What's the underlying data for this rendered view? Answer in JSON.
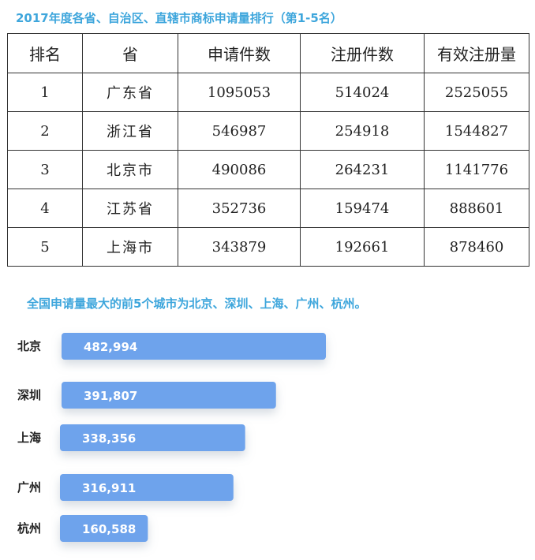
{
  "table_section": {
    "title": "2017年度各省、自治区、直辖市商标申请量排行（第1-5名）",
    "headers": [
      "排名",
      "省",
      "申请件数",
      "注册件数",
      "有效注册量"
    ],
    "rows": [
      {
        "rank": "1",
        "province": "广东省",
        "applications": "1095053",
        "registrations": "514024",
        "valid": "2525055"
      },
      {
        "rank": "2",
        "province": "浙江省",
        "applications": "546987",
        "registrations": "254918",
        "valid": "1544827"
      },
      {
        "rank": "3",
        "province": "北京市",
        "applications": "490086",
        "registrations": "264231",
        "valid": "1141776"
      },
      {
        "rank": "4",
        "province": "江苏省",
        "applications": "352736",
        "registrations": "159474",
        "valid": "888601"
      },
      {
        "rank": "5",
        "province": "上海市",
        "applications": "343879",
        "registrations": "192661",
        "valid": "878460"
      }
    ]
  },
  "chart_section": {
    "title": "全国申请量最大的前5个城市为北京、深圳、上海、广州、杭州。"
  },
  "chart_data": {
    "type": "bar",
    "orientation": "horizontal",
    "categories": [
      "北京",
      "深圳",
      "上海",
      "广州",
      "杭州"
    ],
    "values": [
      482994,
      391807,
      338356,
      316911,
      160588
    ],
    "value_labels": [
      "482,994",
      "391,807",
      "338,356",
      "316,911",
      "160,588"
    ],
    "bar_color": "#6ea3ec",
    "grid": false
  }
}
